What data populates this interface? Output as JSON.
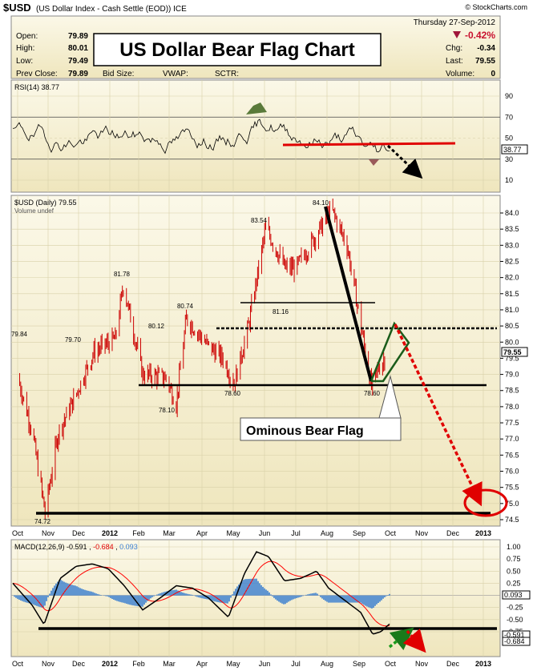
{
  "header": {
    "symbol": "$USD",
    "description": "(US Dollar Index - Cash Settle (EOD)) ICE",
    "watermark": "© StockCharts.com",
    "date": "Thursday  27-Sep-2012",
    "open_label": "Open:",
    "open": "79.89",
    "high_label": "High:",
    "high": "80.01",
    "low_label": "Low:",
    "low": "79.49",
    "prev_label": "Prev Close:",
    "prev": "79.89",
    "bid_label": "Bid Size:",
    "vwap_label": "VWAP:",
    "sctr_label": "SCTR:",
    "pct_change": "-0.42%",
    "chg_label": "Chg:",
    "chg": "-0.34",
    "last_label": "Last:",
    "last": "79.55",
    "volume_label": "Volume:",
    "volume": "0"
  },
  "title_box": "US Dollar Bear Flag Chart",
  "colors": {
    "panel_bg": "#f3efd5",
    "price_line": "#cc0000",
    "red": "#e00000",
    "green": "#1a7a1a",
    "macd_line": "#000000",
    "signal_line": "#ff0000",
    "histogram": "#3a7fd0"
  },
  "rsi": {
    "label": "RSI(14) 38.77",
    "current_tag": "38.77",
    "ticks": [
      "90",
      "70",
      "50",
      "30",
      "10"
    ]
  },
  "price": {
    "label": "$USD (Daily) 79.55",
    "volume_label": "Volume undef",
    "current_tag": "79.55",
    "ticks": [
      "84.0",
      "83.5",
      "83.0",
      "82.5",
      "82.0",
      "81.5",
      "81.0",
      "80.5",
      "80.0",
      "79.5",
      "79.0",
      "78.5",
      "78.0",
      "77.5",
      "77.0",
      "76.5",
      "76.0",
      "75.5",
      "75.0",
      "74.5"
    ],
    "callouts": [
      "79.84",
      "79.70",
      "81.78",
      "80.12",
      "80.74",
      "83.54",
      "84.10",
      "81.16",
      "78.60",
      "78.10",
      "78.60",
      "74.72"
    ],
    "annotation_box": "Ominous Bear Flag"
  },
  "macd": {
    "label_prefix": "MACD(12,26,9)",
    "macd": "-0.591",
    "signal": "-0.684",
    "hist": "0.093",
    "ticks": [
      "1.00",
      "0.75",
      "0.50",
      "0.25",
      "0.00",
      "-0.25",
      "-0.50",
      "-0.75"
    ],
    "tags": [
      "0.093",
      "-0.591",
      "-0.684"
    ]
  },
  "x_axis": [
    "Oct",
    "Nov",
    "Dec",
    "2012",
    "Feb",
    "Mar",
    "Apr",
    "May",
    "Jun",
    "Jul",
    "Aug",
    "Sep",
    "Oct",
    "Nov",
    "Dec",
    "2013"
  ],
  "chart_data": {
    "type": "line",
    "title": "US Dollar Bear Flag Chart",
    "series": [
      {
        "name": "$USD (Daily)",
        "values_note": "",
        "x": [
          "2011-10-01",
          "2011-10-15",
          "2011-10-28",
          "2011-11-10",
          "2011-11-25",
          "2011-12-15",
          "2012-01-05",
          "2012-01-13",
          "2012-02-01",
          "2012-02-24",
          "2012-03-05",
          "2012-03-15",
          "2012-04-05",
          "2012-04-20",
          "2012-05-01",
          "2012-05-15",
          "2012-06-01",
          "2012-06-20",
          "2012-07-01",
          "2012-07-24",
          "2012-08-05",
          "2012-08-20",
          "2012-09-13",
          "2012-09-20",
          "2012-09-27"
        ],
        "y": [
          78.9,
          77.3,
          74.72,
          77.2,
          78.2,
          79.7,
          80.1,
          81.78,
          79.0,
          78.9,
          78.1,
          80.74,
          79.9,
          79.5,
          78.7,
          80.5,
          83.54,
          82.3,
          82.3,
          83.5,
          84.1,
          83.0,
          78.6,
          79.2,
          79.55
        ]
      }
    ],
    "ylim": [
      74.5,
      84.3
    ],
    "annotations": [
      "Ominous Bear Flag"
    ]
  }
}
